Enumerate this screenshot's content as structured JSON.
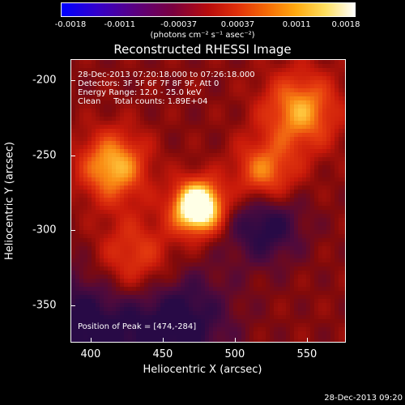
{
  "colorbar": {
    "ticks": [
      "-0.0018",
      "-0.0011",
      "-0.00037",
      "0.00037",
      "0.0011",
      "0.0018"
    ],
    "units": "(photons cm⁻² s⁻¹ asec⁻²)"
  },
  "chart_data": {
    "type": "heatmap",
    "title": "Reconstructed RHESSI Image",
    "xlabel": "Heliocentric X (arcsec)",
    "ylabel": "Heliocentric Y (arcsec)",
    "xlim": [
      386,
      577
    ],
    "ylim": [
      -375,
      -186
    ],
    "xticks": [
      400,
      450,
      500,
      550
    ],
    "yticks": [
      -200,
      -250,
      -300,
      -350
    ],
    "colorbar_range": [
      -0.0018,
      0.0018
    ],
    "colormap": "hot",
    "peak": {
      "x": 474,
      "y": -284
    },
    "sources": [
      {
        "x": 474,
        "y": -284,
        "relative_intensity": 1.0
      },
      {
        "x": 415,
        "y": -257,
        "relative_intensity": 0.55
      },
      {
        "x": 545,
        "y": -220,
        "relative_intensity": 0.5
      },
      {
        "x": 520,
        "y": -262,
        "relative_intensity": 0.45
      },
      {
        "x": 430,
        "y": -320,
        "relative_intensity": 0.35
      }
    ]
  },
  "info": {
    "time": "28-Dec-2013 07:20:18.000 to 07:26:18.000",
    "detectors": "Detectors: 3F 5F 6F 7F 8F 9F, Att 0",
    "energy": "Energy Range: 12.0 - 25.0 keV",
    "clean": "Clean     Total counts: 1.89E+04",
    "peak": "Position of Peak = [474,-284]"
  },
  "footer": {
    "timestamp": "28-Dec-2013 09:20"
  }
}
